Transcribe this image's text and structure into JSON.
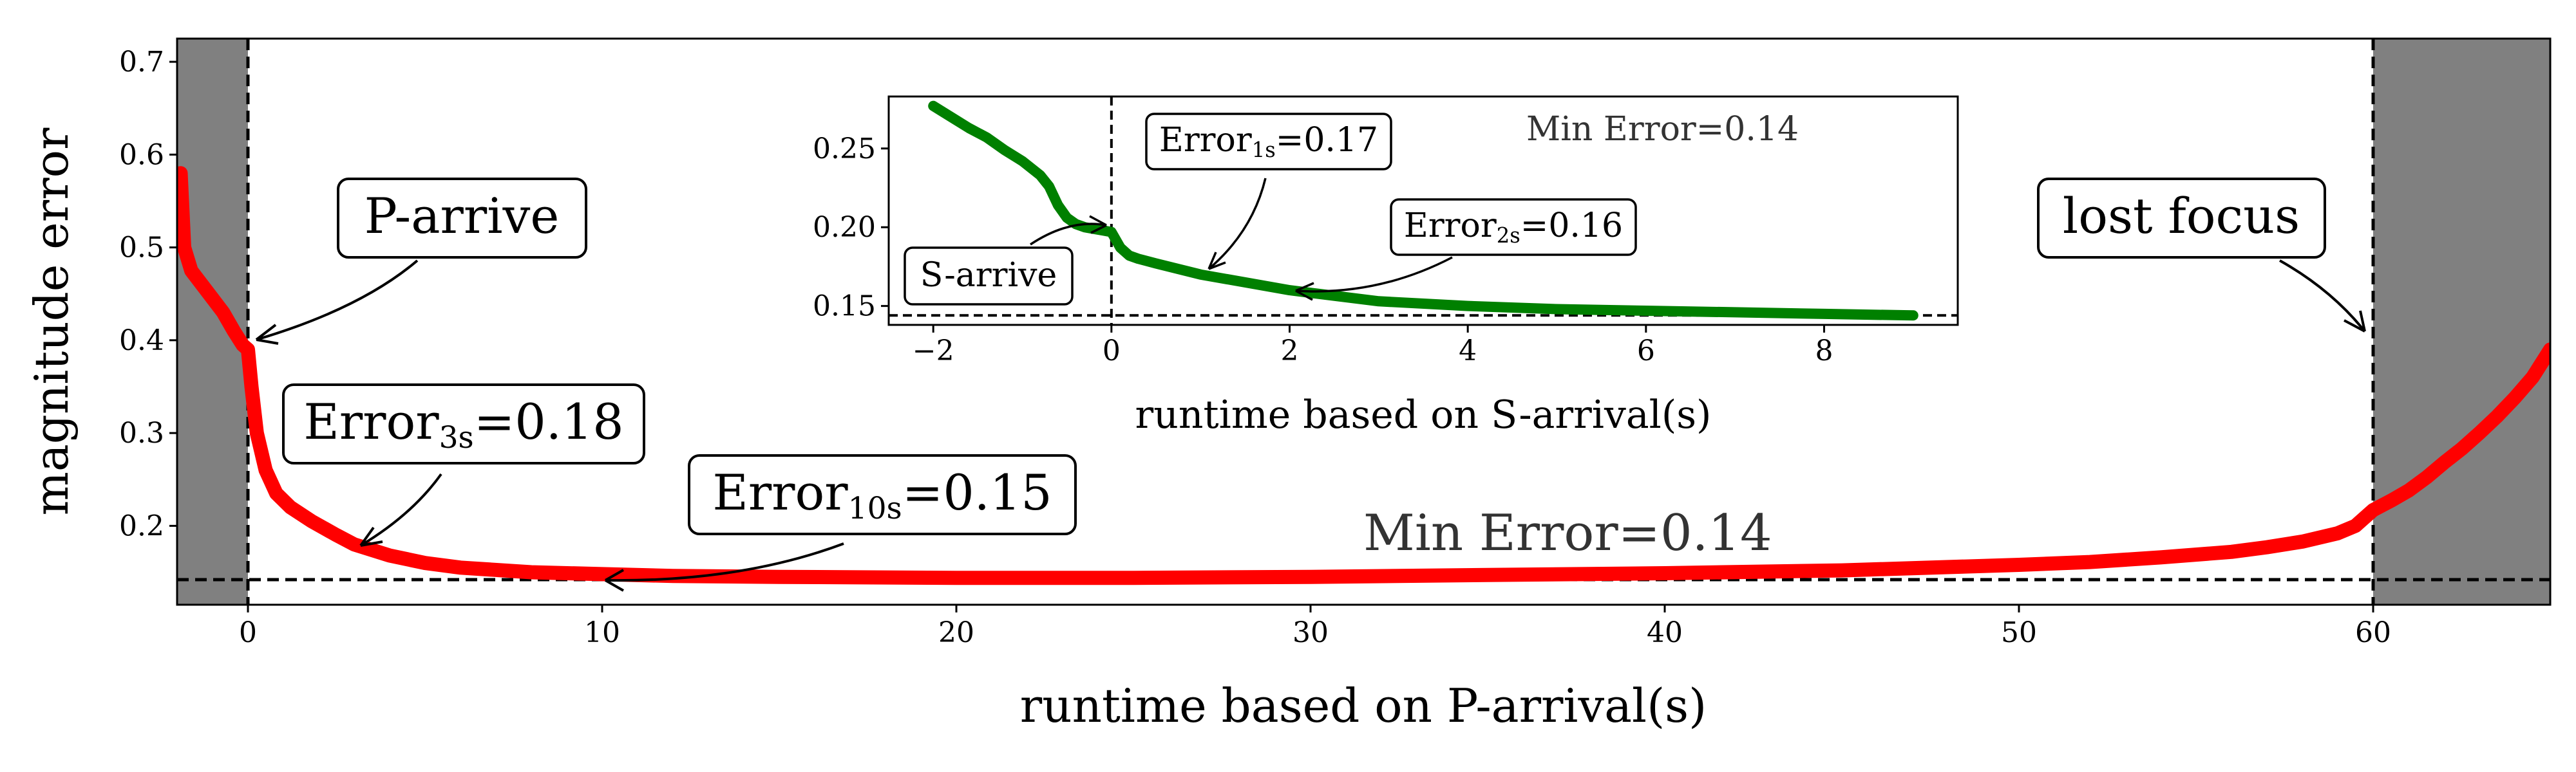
{
  "chart_data": [
    {
      "type": "line",
      "xlabel": "runtime based on P-arrival(s)",
      "ylabel": "magnitude error",
      "xlim": [
        -2,
        65
      ],
      "ylim": [
        0.115,
        0.725
      ],
      "xticks": [
        0,
        10,
        20,
        30,
        40,
        50,
        60
      ],
      "yticks": [
        0.2,
        0.3,
        0.4,
        0.5,
        0.6,
        0.7
      ],
      "grid": false,
      "line_color": "#ff0000",
      "shade_color": "#808080",
      "shaded_regions": [
        [
          -2,
          0
        ],
        [
          60,
          65
        ]
      ],
      "vlines": [
        0,
        60
      ],
      "hline": 0.142,
      "x": [
        -1.9,
        -1.8,
        -1.6,
        -1.3,
        -1.0,
        -0.7,
        -0.4,
        -0.15,
        0.0,
        0.1,
        0.25,
        0.5,
        0.8,
        1.2,
        1.8,
        2.5,
        3.0,
        4.0,
        5.0,
        6.0,
        8.0,
        10.0,
        12.0,
        15.0,
        20.0,
        25.0,
        30.0,
        35.0,
        40.0,
        45.0,
        50.0,
        52.0,
        54.0,
        56.0,
        57.0,
        58.0,
        59.0,
        59.5,
        60.0,
        60.5,
        61.0,
        61.5,
        62.0,
        62.5,
        63.0,
        63.5,
        64.0,
        64.5,
        65.0
      ],
      "y": [
        0.58,
        0.5,
        0.475,
        0.46,
        0.445,
        0.43,
        0.41,
        0.395,
        0.39,
        0.35,
        0.3,
        0.26,
        0.235,
        0.22,
        0.205,
        0.19,
        0.18,
        0.168,
        0.16,
        0.155,
        0.15,
        0.148,
        0.146,
        0.145,
        0.144,
        0.144,
        0.145,
        0.147,
        0.149,
        0.152,
        0.158,
        0.161,
        0.166,
        0.172,
        0.177,
        0.183,
        0.192,
        0.2,
        0.217,
        0.227,
        0.238,
        0.252,
        0.268,
        0.283,
        0.3,
        0.318,
        0.338,
        0.36,
        0.39
      ],
      "annotations": {
        "p_arrive": "P-arrive",
        "lost_focus": "lost focus",
        "error3_base": "Error",
        "error3_sub": "3s",
        "error3_value": "=0.18",
        "error10_base": "Error",
        "error10_sub": "10s",
        "error10_value": "=0.15",
        "min_error": "Min Error=0.14"
      }
    },
    {
      "type": "line",
      "xlabel": "runtime based on S-arrival(s)",
      "ylabel": "",
      "xlim": [
        -2.5,
        9.5
      ],
      "ylim": [
        0.138,
        0.283
      ],
      "xticks": [
        -2,
        0,
        2,
        4,
        6,
        8
      ],
      "yticks": [
        0.15,
        0.2,
        0.25
      ],
      "grid": false,
      "line_color": "#008000",
      "vlines": [
        0
      ],
      "hline": 0.144,
      "x": [
        -2.0,
        -1.8,
        -1.6,
        -1.4,
        -1.2,
        -1.0,
        -0.8,
        -0.7,
        -0.6,
        -0.5,
        -0.4,
        -0.3,
        -0.2,
        -0.1,
        0.0,
        0.1,
        0.2,
        0.3,
        0.5,
        1.0,
        1.5,
        2.0,
        3.0,
        4.0,
        5.0,
        6.0,
        7.0,
        8.0,
        9.0
      ],
      "y": [
        0.277,
        0.27,
        0.263,
        0.257,
        0.249,
        0.242,
        0.233,
        0.226,
        0.214,
        0.206,
        0.202,
        0.2,
        0.199,
        0.198,
        0.197,
        0.187,
        0.182,
        0.18,
        0.177,
        0.17,
        0.165,
        0.16,
        0.153,
        0.15,
        0.148,
        0.147,
        0.146,
        0.145,
        0.144
      ],
      "annotations": {
        "s_arrive": "S-arrive",
        "error1_base": "Error",
        "error1_sub": "1s",
        "error1_value": "=0.17",
        "error2_base": "Error",
        "error2_sub": "2s",
        "error2_value": "=0.16",
        "min_error": "Min Error=0.14"
      }
    }
  ]
}
